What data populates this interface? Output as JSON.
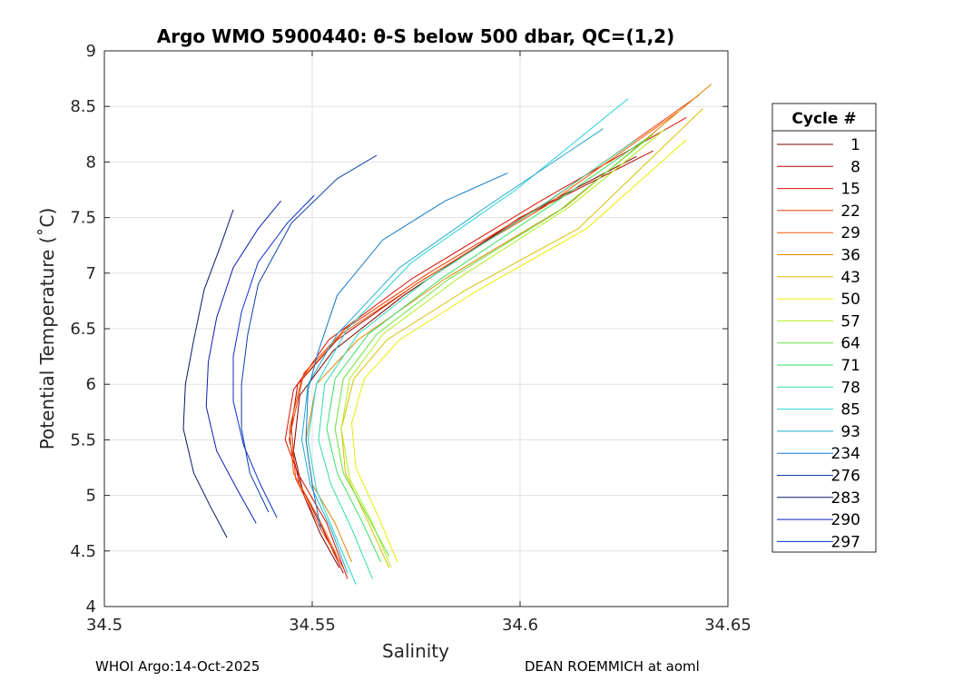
{
  "chart_data": {
    "type": "line",
    "title": "Argo WMO 5900440: θ-S below 500 dbar,  QC=(1,2)",
    "xlabel": "Salinity",
    "ylabel": "Potential Temperature (˚C)",
    "xlim": [
      34.5,
      34.65
    ],
    "ylim": [
      4,
      9
    ],
    "xticks": [
      34.5,
      34.55,
      34.6,
      34.65
    ],
    "xtick_labels": [
      "34.5",
      "34.55",
      "34.6",
      "34.65"
    ],
    "yticks": [
      4,
      4.5,
      5,
      5.5,
      6,
      6.5,
      7,
      7.5,
      8,
      8.5,
      9
    ],
    "ytick_labels": [
      "4",
      "4.5",
      "5",
      "5.5",
      "6",
      "6.5",
      "7",
      "7.5",
      "8",
      "8.5",
      "9"
    ],
    "grid": true,
    "legend": {
      "title": "Cycle #",
      "position": "right"
    },
    "series": [
      {
        "name": "1",
        "color": "#7f0000",
        "points": [
          [
            34.5565,
            4.35
          ],
          [
            34.552,
            4.65
          ],
          [
            34.548,
            5.0
          ],
          [
            34.5455,
            5.4
          ],
          [
            34.547,
            5.9
          ],
          [
            34.555,
            6.3
          ],
          [
            34.572,
            6.8
          ],
          [
            34.6,
            7.5
          ],
          [
            34.628,
            8.05
          ]
        ]
      },
      {
        "name": "8",
        "color": "#b40000",
        "points": [
          [
            34.5575,
            4.3
          ],
          [
            34.5525,
            4.7
          ],
          [
            34.547,
            5.1
          ],
          [
            34.5445,
            5.5
          ],
          [
            34.5465,
            6.0
          ],
          [
            34.556,
            6.4
          ],
          [
            34.575,
            6.9
          ],
          [
            34.603,
            7.55
          ],
          [
            34.632,
            8.1
          ]
        ]
      },
      {
        "name": "15",
        "color": "#dc1000",
        "points": [
          [
            34.5585,
            4.25
          ],
          [
            34.5535,
            4.75
          ],
          [
            34.5465,
            5.2
          ],
          [
            34.5435,
            5.5
          ],
          [
            34.5455,
            5.95
          ],
          [
            34.554,
            6.4
          ],
          [
            34.574,
            6.95
          ],
          [
            34.605,
            7.65
          ],
          [
            34.64,
            8.4
          ]
        ]
      },
      {
        "name": "22",
        "color": "#ee3a00",
        "points": [
          [
            34.5575,
            4.35
          ],
          [
            34.552,
            4.7
          ],
          [
            34.546,
            5.15
          ],
          [
            34.545,
            5.6
          ],
          [
            34.548,
            6.1
          ],
          [
            34.558,
            6.5
          ],
          [
            34.578,
            7.0
          ],
          [
            34.607,
            7.65
          ],
          [
            34.643,
            8.6
          ]
        ]
      },
      {
        "name": "29",
        "color": "#f05a00",
        "points": [
          [
            34.556,
            4.45
          ],
          [
            34.5515,
            4.8
          ],
          [
            34.5455,
            5.2
          ],
          [
            34.5445,
            5.6
          ],
          [
            34.5475,
            6.05
          ],
          [
            34.557,
            6.45
          ],
          [
            34.577,
            6.95
          ],
          [
            34.606,
            7.6
          ],
          [
            34.638,
            8.45
          ]
        ]
      },
      {
        "name": "36",
        "color": "#e08800",
        "points": [
          [
            34.5595,
            4.4
          ],
          [
            34.5555,
            4.75
          ],
          [
            34.55,
            5.1
          ],
          [
            34.5485,
            5.5
          ],
          [
            34.551,
            6.0
          ],
          [
            34.561,
            6.4
          ],
          [
            34.582,
            6.95
          ],
          [
            34.611,
            7.6
          ],
          [
            34.646,
            8.7
          ]
        ]
      },
      {
        "name": "43",
        "color": "#d8c000",
        "points": [
          [
            34.5685,
            4.35
          ],
          [
            34.563,
            4.8
          ],
          [
            34.558,
            5.2
          ],
          [
            34.557,
            5.6
          ],
          [
            34.56,
            6.05
          ],
          [
            34.568,
            6.4
          ],
          [
            34.587,
            6.85
          ],
          [
            34.614,
            7.4
          ],
          [
            34.644,
            8.48
          ]
        ]
      },
      {
        "name": "50",
        "color": "#ecec00",
        "points": [
          [
            34.5705,
            4.4
          ],
          [
            34.566,
            4.8
          ],
          [
            34.5605,
            5.25
          ],
          [
            34.5595,
            5.65
          ],
          [
            34.5625,
            6.05
          ],
          [
            34.571,
            6.4
          ],
          [
            34.59,
            6.85
          ],
          [
            34.616,
            7.4
          ],
          [
            34.64,
            8.2
          ]
        ]
      },
      {
        "name": "57",
        "color": "#b4ec20",
        "points": [
          [
            34.569,
            4.35
          ],
          [
            34.5645,
            4.75
          ],
          [
            34.559,
            5.15
          ],
          [
            34.557,
            5.6
          ],
          [
            34.559,
            6.05
          ],
          [
            34.567,
            6.45
          ],
          [
            34.585,
            6.95
          ],
          [
            34.612,
            7.6
          ],
          [
            34.635,
            8.3
          ]
        ]
      },
      {
        "name": "64",
        "color": "#66e23c",
        "points": [
          [
            34.5685,
            4.45
          ],
          [
            34.5635,
            4.8
          ],
          [
            34.5575,
            5.2
          ],
          [
            34.5555,
            5.6
          ],
          [
            34.5575,
            6.05
          ],
          [
            34.5655,
            6.45
          ],
          [
            34.583,
            6.95
          ],
          [
            34.609,
            7.55
          ],
          [
            34.632,
            8.25
          ]
        ]
      },
      {
        "name": "71",
        "color": "#3ae066",
        "points": [
          [
            34.5665,
            4.4
          ],
          [
            34.5615,
            4.8
          ],
          [
            34.556,
            5.2
          ],
          [
            34.5535,
            5.6
          ],
          [
            34.5555,
            6.05
          ],
          [
            34.5635,
            6.45
          ],
          [
            34.581,
            6.95
          ],
          [
            34.607,
            7.6
          ],
          [
            34.63,
            8.2
          ]
        ]
      },
      {
        "name": "78",
        "color": "#30dcaa",
        "points": [
          [
            34.5645,
            4.25
          ],
          [
            34.5595,
            4.7
          ],
          [
            34.5545,
            5.1
          ],
          [
            34.5515,
            5.5
          ],
          [
            34.553,
            6.0
          ],
          [
            34.561,
            6.45
          ],
          [
            34.578,
            6.95
          ],
          [
            34.603,
            7.55
          ],
          [
            34.628,
            8.2
          ]
        ]
      },
      {
        "name": "85",
        "color": "#28d2d8",
        "points": [
          [
            34.5605,
            4.2
          ],
          [
            34.556,
            4.6
          ],
          [
            34.551,
            5.05
          ],
          [
            34.549,
            5.5
          ],
          [
            34.551,
            6.0
          ],
          [
            34.5585,
            6.5
          ],
          [
            34.574,
            7.1
          ],
          [
            34.599,
            7.75
          ],
          [
            34.626,
            8.57
          ]
        ]
      },
      {
        "name": "93",
        "color": "#20a8d0",
        "points": [
          [
            34.5585,
            4.3
          ],
          [
            34.5545,
            4.7
          ],
          [
            34.5495,
            5.1
          ],
          [
            34.5475,
            5.5
          ],
          [
            34.549,
            6.0
          ],
          [
            34.556,
            6.45
          ],
          [
            34.571,
            7.05
          ],
          [
            34.592,
            7.6
          ],
          [
            34.62,
            8.3
          ]
        ]
      },
      {
        "name": "234",
        "color": "#1078c8",
        "points": [
          [
            34.552,
            4.7
          ],
          [
            34.55,
            5.1
          ],
          [
            34.5485,
            5.5
          ],
          [
            34.549,
            5.95
          ],
          [
            34.5515,
            6.3
          ],
          [
            34.556,
            6.8
          ],
          [
            34.567,
            7.3
          ],
          [
            34.582,
            7.65
          ],
          [
            34.597,
            7.9
          ]
        ]
      },
      {
        "name": "276",
        "color": "#0a40a8",
        "points": [
          [
            34.5395,
            4.85
          ],
          [
            34.535,
            5.2
          ],
          [
            34.533,
            5.6
          ],
          [
            34.533,
            6.0
          ],
          [
            34.5345,
            6.45
          ],
          [
            34.537,
            6.9
          ],
          [
            34.545,
            7.45
          ],
          [
            34.556,
            7.85
          ],
          [
            34.5655,
            8.06
          ]
        ]
      },
      {
        "name": "283",
        "color": "#061860",
        "points": [
          [
            34.5295,
            4.62
          ],
          [
            34.5255,
            4.9
          ],
          [
            34.5215,
            5.2
          ],
          [
            34.519,
            5.6
          ],
          [
            34.5195,
            6.0
          ],
          [
            34.5215,
            6.4
          ],
          [
            34.524,
            6.85
          ],
          [
            34.528,
            7.25
          ],
          [
            34.531,
            7.57
          ]
        ]
      },
      {
        "name": "290",
        "color": "#0a1eb4",
        "points": [
          [
            34.5365,
            4.75
          ],
          [
            34.532,
            5.05
          ],
          [
            34.527,
            5.4
          ],
          [
            34.5245,
            5.8
          ],
          [
            34.525,
            6.2
          ],
          [
            34.527,
            6.6
          ],
          [
            34.531,
            7.05
          ],
          [
            34.537,
            7.4
          ],
          [
            34.5425,
            7.65
          ]
        ]
      },
      {
        "name": "297",
        "color": "#0c2cd0",
        "points": [
          [
            34.5415,
            4.8
          ],
          [
            34.5375,
            5.1
          ],
          [
            34.5335,
            5.45
          ],
          [
            34.531,
            5.85
          ],
          [
            34.531,
            6.25
          ],
          [
            34.533,
            6.65
          ],
          [
            34.537,
            7.1
          ],
          [
            34.544,
            7.45
          ],
          [
            34.5505,
            7.7
          ]
        ]
      }
    ]
  },
  "footer": {
    "left": "WHOI Argo:14-Oct-2025",
    "right": "DEAN ROEMMICH at aoml"
  }
}
